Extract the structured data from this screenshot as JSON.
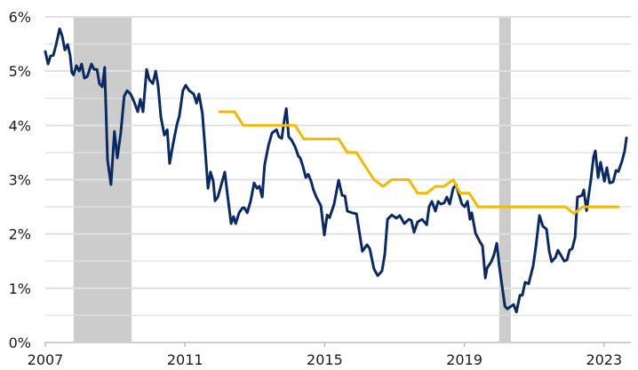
{
  "chart_data": {
    "type": "line",
    "title": "",
    "xlabel": "",
    "ylabel": "",
    "xlim": [
      2007,
      2024.1
    ],
    "ylim": [
      0,
      6
    ],
    "grid": "horizontal",
    "x_ticks": [
      2007,
      2011,
      2015,
      2019,
      2023
    ],
    "x_tick_labels": [
      "2007",
      "2011",
      "2015",
      "2019",
      "2023"
    ],
    "y_ticks": [
      0,
      1,
      2,
      3,
      4,
      5,
      6
    ],
    "y_tick_labels": [
      "0%",
      "1%",
      "2%",
      "3%",
      "4%",
      "5%",
      "6%"
    ],
    "shaded_periods": [
      [
        2007.81,
        2009.47
      ],
      [
        2020.0,
        2020.33
      ]
    ],
    "colors": {
      "series1": "#0a2a66",
      "series2": "#f5b800",
      "shade": "#cccccc",
      "grid": "#e0e0e0"
    },
    "series": [
      {
        "color": "#0a2a66",
        "points": [
          [
            2007.0,
            5.36
          ],
          [
            2007.08,
            5.13
          ],
          [
            2007.15,
            5.28
          ],
          [
            2007.23,
            5.29
          ],
          [
            2007.31,
            5.49
          ],
          [
            2007.41,
            5.78
          ],
          [
            2007.48,
            5.65
          ],
          [
            2007.56,
            5.39
          ],
          [
            2007.64,
            5.49
          ],
          [
            2007.71,
            5.29
          ],
          [
            2007.76,
            4.97
          ],
          [
            2007.81,
            4.93
          ],
          [
            2007.89,
            5.1
          ],
          [
            2007.97,
            5.0
          ],
          [
            2008.04,
            5.13
          ],
          [
            2008.12,
            4.87
          ],
          [
            2008.2,
            4.9
          ],
          [
            2008.32,
            5.13
          ],
          [
            2008.4,
            5.03
          ],
          [
            2008.48,
            5.03
          ],
          [
            2008.55,
            4.77
          ],
          [
            2008.63,
            4.71
          ],
          [
            2008.7,
            5.07
          ],
          [
            2008.78,
            3.37
          ],
          [
            2008.88,
            2.91
          ],
          [
            2008.98,
            3.89
          ],
          [
            2009.06,
            3.4
          ],
          [
            2009.16,
            3.86
          ],
          [
            2009.26,
            4.54
          ],
          [
            2009.34,
            4.64
          ],
          [
            2009.44,
            4.58
          ],
          [
            2009.54,
            4.44
          ],
          [
            2009.65,
            4.25
          ],
          [
            2009.72,
            4.48
          ],
          [
            2009.8,
            4.25
          ],
          [
            2009.9,
            5.03
          ],
          [
            2009.98,
            4.84
          ],
          [
            2010.08,
            4.77
          ],
          [
            2010.16,
            5.0
          ],
          [
            2010.23,
            4.74
          ],
          [
            2010.31,
            4.15
          ],
          [
            2010.41,
            3.82
          ],
          [
            2010.49,
            3.92
          ],
          [
            2010.56,
            3.3
          ],
          [
            2010.66,
            3.66
          ],
          [
            2010.77,
            4.02
          ],
          [
            2010.84,
            4.18
          ],
          [
            2010.94,
            4.64
          ],
          [
            2011.02,
            4.74
          ],
          [
            2011.12,
            4.64
          ],
          [
            2011.25,
            4.58
          ],
          [
            2011.33,
            4.41
          ],
          [
            2011.4,
            4.58
          ],
          [
            2011.5,
            4.22
          ],
          [
            2011.58,
            3.53
          ],
          [
            2011.66,
            2.84
          ],
          [
            2011.73,
            3.14
          ],
          [
            2011.81,
            2.97
          ],
          [
            2011.86,
            2.61
          ],
          [
            2011.94,
            2.68
          ],
          [
            2012.01,
            2.84
          ],
          [
            2012.14,
            3.14
          ],
          [
            2012.22,
            2.71
          ],
          [
            2012.32,
            2.19
          ],
          [
            2012.39,
            2.32
          ],
          [
            2012.45,
            2.19
          ],
          [
            2012.55,
            2.39
          ],
          [
            2012.65,
            2.48
          ],
          [
            2012.7,
            2.48
          ],
          [
            2012.78,
            2.39
          ],
          [
            2012.88,
            2.61
          ],
          [
            2012.98,
            2.94
          ],
          [
            2013.06,
            2.84
          ],
          [
            2013.13,
            2.88
          ],
          [
            2013.21,
            2.68
          ],
          [
            2013.28,
            3.27
          ],
          [
            2013.39,
            3.63
          ],
          [
            2013.49,
            3.86
          ],
          [
            2013.62,
            3.92
          ],
          [
            2013.69,
            3.79
          ],
          [
            2013.77,
            3.76
          ],
          [
            2013.84,
            4.08
          ],
          [
            2013.9,
            4.31
          ],
          [
            2013.97,
            3.79
          ],
          [
            2014.05,
            3.73
          ],
          [
            2014.15,
            3.61
          ],
          [
            2014.25,
            3.43
          ],
          [
            2014.3,
            3.4
          ],
          [
            2014.38,
            3.24
          ],
          [
            2014.46,
            3.04
          ],
          [
            2014.53,
            3.1
          ],
          [
            2014.61,
            2.97
          ],
          [
            2014.68,
            2.81
          ],
          [
            2014.76,
            2.68
          ],
          [
            2014.89,
            2.52
          ],
          [
            2014.99,
            1.98
          ],
          [
            2015.07,
            2.35
          ],
          [
            2015.14,
            2.3
          ],
          [
            2015.27,
            2.55
          ],
          [
            2015.4,
            2.99
          ],
          [
            2015.5,
            2.71
          ],
          [
            2015.58,
            2.7
          ],
          [
            2015.65,
            2.42
          ],
          [
            2015.78,
            2.39
          ],
          [
            2015.91,
            2.37
          ],
          [
            2016.08,
            1.68
          ],
          [
            2016.21,
            1.8
          ],
          [
            2016.29,
            1.73
          ],
          [
            2016.41,
            1.36
          ],
          [
            2016.52,
            1.23
          ],
          [
            2016.64,
            1.32
          ],
          [
            2016.72,
            1.62
          ],
          [
            2016.8,
            2.27
          ],
          [
            2016.92,
            2.35
          ],
          [
            2017.05,
            2.29
          ],
          [
            2017.15,
            2.34
          ],
          [
            2017.28,
            2.19
          ],
          [
            2017.41,
            2.27
          ],
          [
            2017.48,
            2.25
          ],
          [
            2017.56,
            2.03
          ],
          [
            2017.66,
            2.22
          ],
          [
            2017.79,
            2.27
          ],
          [
            2017.92,
            2.17
          ],
          [
            2017.99,
            2.5
          ],
          [
            2018.07,
            2.6
          ],
          [
            2018.17,
            2.42
          ],
          [
            2018.25,
            2.6
          ],
          [
            2018.32,
            2.55
          ],
          [
            2018.42,
            2.57
          ],
          [
            2018.5,
            2.68
          ],
          [
            2018.58,
            2.55
          ],
          [
            2018.68,
            2.84
          ],
          [
            2018.76,
            2.91
          ],
          [
            2018.83,
            2.76
          ],
          [
            2018.93,
            2.55
          ],
          [
            2019.01,
            2.5
          ],
          [
            2019.09,
            2.6
          ],
          [
            2019.16,
            2.27
          ],
          [
            2019.21,
            2.39
          ],
          [
            2019.32,
            2.01
          ],
          [
            2019.44,
            1.86
          ],
          [
            2019.52,
            1.78
          ],
          [
            2019.6,
            1.19
          ],
          [
            2019.65,
            1.37
          ],
          [
            2019.77,
            1.49
          ],
          [
            2019.85,
            1.62
          ],
          [
            2019.93,
            1.83
          ],
          [
            2020.0,
            1.41
          ],
          [
            2020.16,
            0.67
          ],
          [
            2020.23,
            0.62
          ],
          [
            2020.41,
            0.7
          ],
          [
            2020.49,
            0.56
          ],
          [
            2020.59,
            0.87
          ],
          [
            2020.66,
            0.87
          ],
          [
            2020.74,
            1.11
          ],
          [
            2020.84,
            1.08
          ],
          [
            2020.97,
            1.41
          ],
          [
            2021.05,
            1.78
          ],
          [
            2021.15,
            2.34
          ],
          [
            2021.25,
            2.14
          ],
          [
            2021.35,
            2.09
          ],
          [
            2021.43,
            1.68
          ],
          [
            2021.5,
            1.49
          ],
          [
            2021.61,
            1.57
          ],
          [
            2021.68,
            1.7
          ],
          [
            2021.86,
            1.5
          ],
          [
            2021.94,
            1.52
          ],
          [
            2022.01,
            1.7
          ],
          [
            2022.09,
            1.73
          ],
          [
            2022.17,
            1.94
          ],
          [
            2022.24,
            2.68
          ],
          [
            2022.37,
            2.71
          ],
          [
            2022.42,
            2.81
          ],
          [
            2022.5,
            2.43
          ],
          [
            2022.63,
            3.04
          ],
          [
            2022.7,
            3.42
          ],
          [
            2022.75,
            3.53
          ],
          [
            2022.83,
            3.04
          ],
          [
            2022.9,
            3.32
          ],
          [
            2023.01,
            2.97
          ],
          [
            2023.08,
            3.22
          ],
          [
            2023.16,
            2.94
          ],
          [
            2023.26,
            2.96
          ],
          [
            2023.34,
            3.17
          ],
          [
            2023.41,
            3.15
          ],
          [
            2023.51,
            3.33
          ],
          [
            2023.59,
            3.53
          ],
          [
            2023.64,
            3.77
          ]
        ]
      },
      {
        "color": "#f5b800",
        "points": [
          [
            2011.99,
            4.25
          ],
          [
            2012.42,
            4.25
          ],
          [
            2012.67,
            4.0
          ],
          [
            2014.15,
            4.0
          ],
          [
            2014.4,
            3.75
          ],
          [
            2015.4,
            3.75
          ],
          [
            2015.65,
            3.5
          ],
          [
            2015.91,
            3.5
          ],
          [
            2016.41,
            3.0
          ],
          [
            2016.67,
            2.875
          ],
          [
            2016.92,
            3.0
          ],
          [
            2017.41,
            3.0
          ],
          [
            2017.66,
            2.75
          ],
          [
            2017.92,
            2.75
          ],
          [
            2018.17,
            2.875
          ],
          [
            2018.42,
            2.875
          ],
          [
            2018.68,
            3.0
          ],
          [
            2018.88,
            2.75
          ],
          [
            2019.14,
            2.75
          ],
          [
            2019.39,
            2.5
          ],
          [
            2021.89,
            2.5
          ],
          [
            2022.14,
            2.375
          ],
          [
            2022.39,
            2.5
          ],
          [
            2023.41,
            2.5
          ]
        ]
      }
    ]
  }
}
